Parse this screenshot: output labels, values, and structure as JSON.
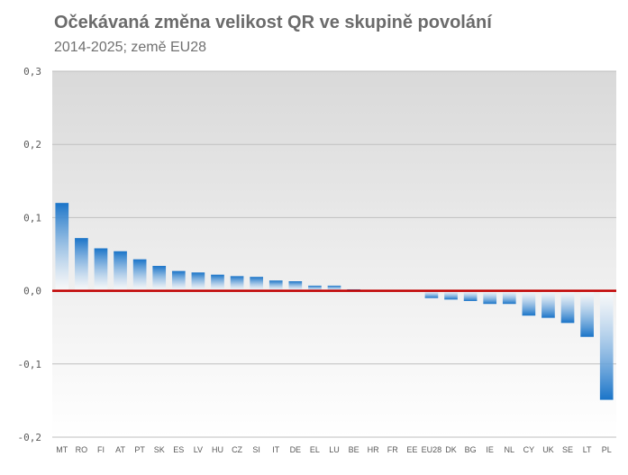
{
  "header": {
    "title": "Očekávaná změna velikost QR ve skupině povolání",
    "subtitle": "2014-2025; země EU28"
  },
  "colors": {
    "bar_top": "#1a74c8",
    "bar_bottom": "#ffffff",
    "zero_line": "#c00000",
    "grid": "#bfbfbf",
    "plot_bg_top": "#d9d9d9",
    "plot_bg_bottom": "#ffffff"
  },
  "chart_data": {
    "type": "bar",
    "title": "Očekávaná změna velikost QR ve skupině povolání",
    "subtitle": "2014-2025; země EU28",
    "categories": [
      "MT",
      "RO",
      "FI",
      "AT",
      "PT",
      "SK",
      "ES",
      "LV",
      "HU",
      "CZ",
      "SI",
      "IT",
      "DE",
      "EL",
      "LU",
      "BE",
      "HR",
      "FR",
      "EE",
      "EU28",
      "DK",
      "BG",
      "IE",
      "NL",
      "CY",
      "UK",
      "SE",
      "LT",
      "PL"
    ],
    "values": [
      0.12,
      0.072,
      0.058,
      0.054,
      0.043,
      0.034,
      0.027,
      0.025,
      0.022,
      0.02,
      0.019,
      0.014,
      0.013,
      0.007,
      0.007,
      0.002,
      0.0,
      0.0,
      0.0,
      -0.01,
      -0.012,
      -0.014,
      -0.018,
      -0.018,
      -0.034,
      -0.037,
      -0.044,
      -0.063,
      -0.149
    ],
    "ylim": [
      -0.2,
      0.3
    ],
    "yticks": [
      -0.2,
      -0.1,
      0.0,
      0.1,
      0.2,
      0.3
    ],
    "ytick_labels": [
      "-0,2",
      "-0,1",
      "0,0",
      "0,1",
      "0,2",
      "0,3"
    ],
    "grid": true,
    "legend": false,
    "xlabel": "",
    "ylabel": ""
  }
}
